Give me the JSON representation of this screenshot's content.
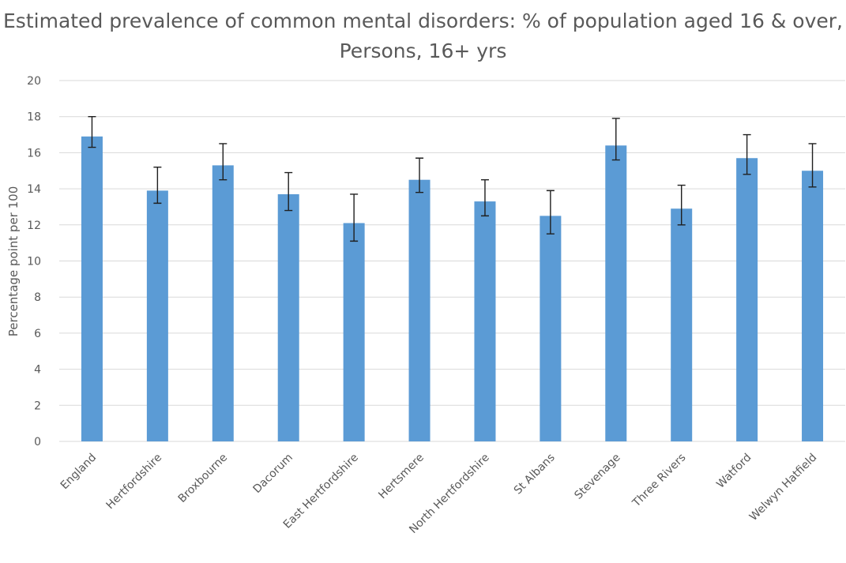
{
  "chart_data": {
    "type": "bar",
    "title_line1": "Estimated prevalence of common mental disorders: % of population aged 16 & over,",
    "title_line2": "Persons, 16+ yrs",
    "xlabel": "",
    "ylabel": "Percentage point per 100",
    "ylim": [
      0,
      20
    ],
    "yticks": [
      0,
      2,
      4,
      6,
      8,
      10,
      12,
      14,
      16,
      18,
      20
    ],
    "grid": true,
    "bar_color": "#5b9bd5",
    "categories": [
      "England",
      "Hertfordshire",
      "Broxbourne",
      "Dacorum",
      "East Hertfordshire",
      "Hertsmere",
      "North Hertfordshire",
      "St Albans",
      "Stevenage",
      "Three Rivers",
      "Watford",
      "Welwyn Hatfield"
    ],
    "values": [
      16.9,
      13.9,
      15.3,
      13.7,
      12.1,
      14.5,
      13.3,
      12.5,
      16.4,
      12.9,
      15.7,
      15.0
    ],
    "error_low": [
      16.3,
      13.2,
      14.5,
      12.8,
      11.1,
      13.8,
      12.5,
      11.5,
      15.6,
      12.0,
      14.8,
      14.1
    ],
    "error_high": [
      18.0,
      15.2,
      16.5,
      14.9,
      13.7,
      15.7,
      14.5,
      13.9,
      17.9,
      14.2,
      17.0,
      16.5
    ]
  }
}
